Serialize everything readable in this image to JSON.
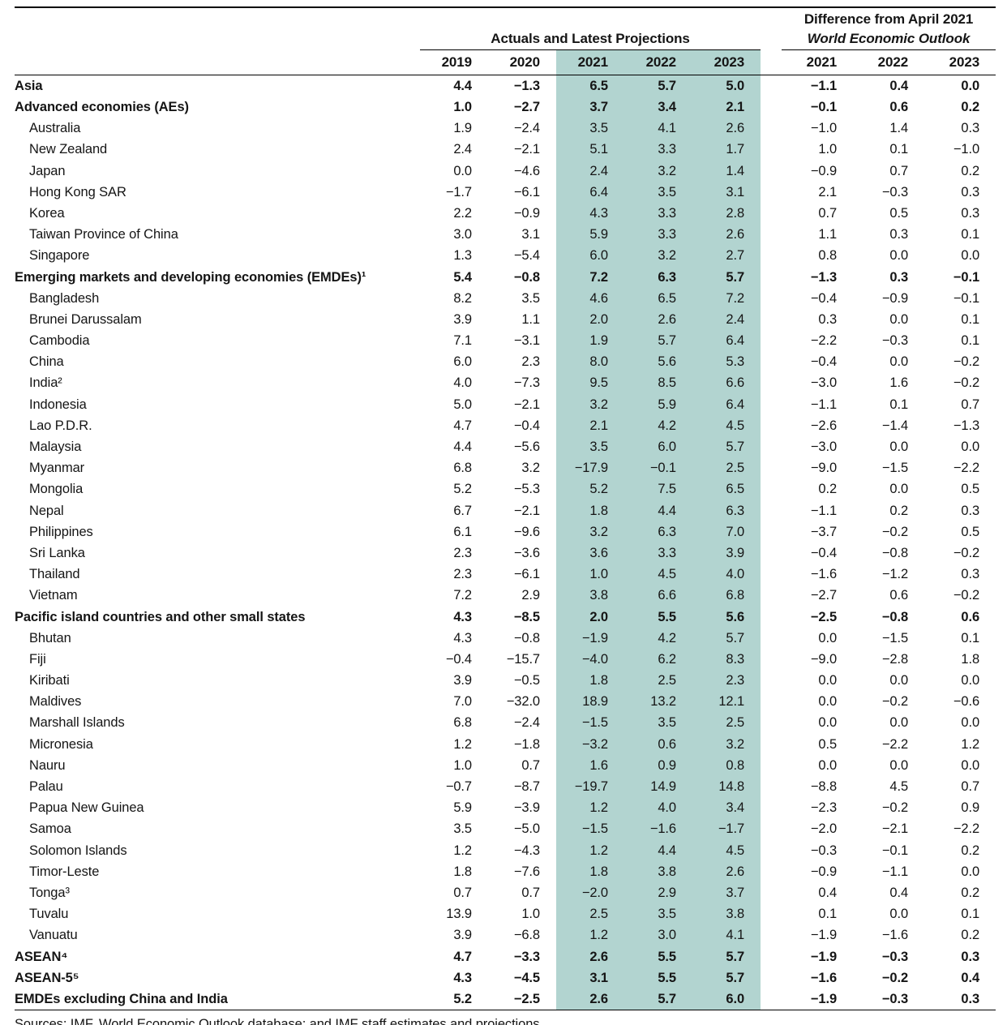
{
  "colors": {
    "highlight": "#b2d4d0"
  },
  "header": {
    "actuals_group": "Actuals and Latest Projections",
    "difference_group_line1": "Difference from April 2021",
    "difference_group_line2": "World Economic Outlook",
    "years_actual": [
      "2019",
      "2020",
      "2021",
      "2022",
      "2023"
    ],
    "years_diff": [
      "2021",
      "2022",
      "2023"
    ]
  },
  "rows": [
    {
      "label": "Asia",
      "bold": true,
      "indent": false,
      "values": [
        "4.4",
        "−1.3",
        "6.5",
        "5.7",
        "5.0",
        "−1.1",
        "0.4",
        "0.0"
      ]
    },
    {
      "label": "Advanced economies (AEs)",
      "bold": true,
      "indent": false,
      "values": [
        "1.0",
        "−2.7",
        "3.7",
        "3.4",
        "2.1",
        "−0.1",
        "0.6",
        "0.2"
      ]
    },
    {
      "label": "Australia",
      "bold": false,
      "indent": true,
      "values": [
        "1.9",
        "−2.4",
        "3.5",
        "4.1",
        "2.6",
        "−1.0",
        "1.4",
        "0.3"
      ]
    },
    {
      "label": "New Zealand",
      "bold": false,
      "indent": true,
      "values": [
        "2.4",
        "−2.1",
        "5.1",
        "3.3",
        "1.7",
        "1.0",
        "0.1",
        "−1.0"
      ]
    },
    {
      "label": "Japan",
      "bold": false,
      "indent": true,
      "values": [
        "0.0",
        "−4.6",
        "2.4",
        "3.2",
        "1.4",
        "−0.9",
        "0.7",
        "0.2"
      ]
    },
    {
      "label": "Hong Kong SAR",
      "bold": false,
      "indent": true,
      "values": [
        "−1.7",
        "−6.1",
        "6.4",
        "3.5",
        "3.1",
        "2.1",
        "−0.3",
        "0.3"
      ]
    },
    {
      "label": "Korea",
      "bold": false,
      "indent": true,
      "values": [
        "2.2",
        "−0.9",
        "4.3",
        "3.3",
        "2.8",
        "0.7",
        "0.5",
        "0.3"
      ]
    },
    {
      "label": "Taiwan Province of China",
      "bold": false,
      "indent": true,
      "values": [
        "3.0",
        "3.1",
        "5.9",
        "3.3",
        "2.6",
        "1.1",
        "0.3",
        "0.1"
      ]
    },
    {
      "label": "Singapore",
      "bold": false,
      "indent": true,
      "values": [
        "1.3",
        "−5.4",
        "6.0",
        "3.2",
        "2.7",
        "0.8",
        "0.0",
        "0.0"
      ]
    },
    {
      "label": "Emerging markets and developing economies (EMDEs)¹",
      "bold": true,
      "indent": false,
      "values": [
        "5.4",
        "−0.8",
        "7.2",
        "6.3",
        "5.7",
        "−1.3",
        "0.3",
        "−0.1"
      ]
    },
    {
      "label": "Bangladesh",
      "bold": false,
      "indent": true,
      "values": [
        "8.2",
        "3.5",
        "4.6",
        "6.5",
        "7.2",
        "−0.4",
        "−0.9",
        "−0.1"
      ]
    },
    {
      "label": "Brunei Darussalam",
      "bold": false,
      "indent": true,
      "values": [
        "3.9",
        "1.1",
        "2.0",
        "2.6",
        "2.4",
        "0.3",
        "0.0",
        "0.1"
      ]
    },
    {
      "label": "Cambodia",
      "bold": false,
      "indent": true,
      "values": [
        "7.1",
        "−3.1",
        "1.9",
        "5.7",
        "6.4",
        "−2.2",
        "−0.3",
        "0.1"
      ]
    },
    {
      "label": "China",
      "bold": false,
      "indent": true,
      "values": [
        "6.0",
        "2.3",
        "8.0",
        "5.6",
        "5.3",
        "−0.4",
        "0.0",
        "−0.2"
      ]
    },
    {
      "label": "India²",
      "bold": false,
      "indent": true,
      "values": [
        "4.0",
        "−7.3",
        "9.5",
        "8.5",
        "6.6",
        "−3.0",
        "1.6",
        "−0.2"
      ]
    },
    {
      "label": "Indonesia",
      "bold": false,
      "indent": true,
      "values": [
        "5.0",
        "−2.1",
        "3.2",
        "5.9",
        "6.4",
        "−1.1",
        "0.1",
        "0.7"
      ]
    },
    {
      "label": "Lao P.D.R.",
      "bold": false,
      "indent": true,
      "values": [
        "4.7",
        "−0.4",
        "2.1",
        "4.2",
        "4.5",
        "−2.6",
        "−1.4",
        "−1.3"
      ]
    },
    {
      "label": "Malaysia",
      "bold": false,
      "indent": true,
      "values": [
        "4.4",
        "−5.6",
        "3.5",
        "6.0",
        "5.7",
        "−3.0",
        "0.0",
        "0.0"
      ]
    },
    {
      "label": "Myanmar",
      "bold": false,
      "indent": true,
      "values": [
        "6.8",
        "3.2",
        "−17.9",
        "−0.1",
        "2.5",
        "−9.0",
        "−1.5",
        "−2.2"
      ]
    },
    {
      "label": "Mongolia",
      "bold": false,
      "indent": true,
      "values": [
        "5.2",
        "−5.3",
        "5.2",
        "7.5",
        "6.5",
        "0.2",
        "0.0",
        "0.5"
      ]
    },
    {
      "label": "Nepal",
      "bold": false,
      "indent": true,
      "values": [
        "6.7",
        "−2.1",
        "1.8",
        "4.4",
        "6.3",
        "−1.1",
        "0.2",
        "0.3"
      ]
    },
    {
      "label": "Philippines",
      "bold": false,
      "indent": true,
      "values": [
        "6.1",
        "−9.6",
        "3.2",
        "6.3",
        "7.0",
        "−3.7",
        "−0.2",
        "0.5"
      ]
    },
    {
      "label": "Sri Lanka",
      "bold": false,
      "indent": true,
      "values": [
        "2.3",
        "−3.6",
        "3.6",
        "3.3",
        "3.9",
        "−0.4",
        "−0.8",
        "−0.2"
      ]
    },
    {
      "label": "Thailand",
      "bold": false,
      "indent": true,
      "values": [
        "2.3",
        "−6.1",
        "1.0",
        "4.5",
        "4.0",
        "−1.6",
        "−1.2",
        "0.3"
      ]
    },
    {
      "label": "Vietnam",
      "bold": false,
      "indent": true,
      "values": [
        "7.2",
        "2.9",
        "3.8",
        "6.6",
        "6.8",
        "−2.7",
        "0.6",
        "−0.2"
      ]
    },
    {
      "label": "Pacific island countries and other small states",
      "bold": true,
      "indent": false,
      "values": [
        "4.3",
        "−8.5",
        "2.0",
        "5.5",
        "5.6",
        "−2.5",
        "−0.8",
        "0.6"
      ]
    },
    {
      "label": "Bhutan",
      "bold": false,
      "indent": true,
      "values": [
        "4.3",
        "−0.8",
        "−1.9",
        "4.2",
        "5.7",
        "0.0",
        "−1.5",
        "0.1"
      ]
    },
    {
      "label": "Fiji",
      "bold": false,
      "indent": true,
      "values": [
        "−0.4",
        "−15.7",
        "−4.0",
        "6.2",
        "8.3",
        "−9.0",
        "−2.8",
        "1.8"
      ]
    },
    {
      "label": "Kiribati",
      "bold": false,
      "indent": true,
      "values": [
        "3.9",
        "−0.5",
        "1.8",
        "2.5",
        "2.3",
        "0.0",
        "0.0",
        "0.0"
      ]
    },
    {
      "label": "Maldives",
      "bold": false,
      "indent": true,
      "values": [
        "7.0",
        "−32.0",
        "18.9",
        "13.2",
        "12.1",
        "0.0",
        "−0.2",
        "−0.6"
      ]
    },
    {
      "label": "Marshall Islands",
      "bold": false,
      "indent": true,
      "values": [
        "6.8",
        "−2.4",
        "−1.5",
        "3.5",
        "2.5",
        "0.0",
        "0.0",
        "0.0"
      ]
    },
    {
      "label": "Micronesia",
      "bold": false,
      "indent": true,
      "values": [
        "1.2",
        "−1.8",
        "−3.2",
        "0.6",
        "3.2",
        "0.5",
        "−2.2",
        "1.2"
      ]
    },
    {
      "label": "Nauru",
      "bold": false,
      "indent": true,
      "values": [
        "1.0",
        "0.7",
        "1.6",
        "0.9",
        "0.8",
        "0.0",
        "0.0",
        "0.0"
      ]
    },
    {
      "label": "Palau",
      "bold": false,
      "indent": true,
      "values": [
        "−0.7",
        "−8.7",
        "−19.7",
        "14.9",
        "14.8",
        "−8.8",
        "4.5",
        "0.7"
      ]
    },
    {
      "label": "Papua New Guinea",
      "bold": false,
      "indent": true,
      "values": [
        "5.9",
        "−3.9",
        "1.2",
        "4.0",
        "3.4",
        "−2.3",
        "−0.2",
        "0.9"
      ]
    },
    {
      "label": "Samoa",
      "bold": false,
      "indent": true,
      "values": [
        "3.5",
        "−5.0",
        "−1.5",
        "−1.6",
        "−1.7",
        "−2.0",
        "−2.1",
        "−2.2"
      ]
    },
    {
      "label": "Solomon Islands",
      "bold": false,
      "indent": true,
      "values": [
        "1.2",
        "−4.3",
        "1.2",
        "4.4",
        "4.5",
        "−0.3",
        "−0.1",
        "0.2"
      ]
    },
    {
      "label": "Timor-Leste",
      "bold": false,
      "indent": true,
      "values": [
        "1.8",
        "−7.6",
        "1.8",
        "3.8",
        "2.6",
        "−0.9",
        "−1.1",
        "0.0"
      ]
    },
    {
      "label": "Tonga³",
      "bold": false,
      "indent": true,
      "values": [
        "0.7",
        "0.7",
        "−2.0",
        "2.9",
        "3.7",
        "0.4",
        "0.4",
        "0.2"
      ]
    },
    {
      "label": "Tuvalu",
      "bold": false,
      "indent": true,
      "values": [
        "13.9",
        "1.0",
        "2.5",
        "3.5",
        "3.8",
        "0.1",
        "0.0",
        "0.1"
      ]
    },
    {
      "label": "Vanuatu",
      "bold": false,
      "indent": true,
      "values": [
        "3.9",
        "−6.8",
        "1.2",
        "3.0",
        "4.1",
        "−1.9",
        "−1.6",
        "0.2"
      ]
    },
    {
      "label": "ASEAN⁴",
      "bold": true,
      "indent": false,
      "values": [
        "4.7",
        "−3.3",
        "2.6",
        "5.5",
        "5.7",
        "−1.9",
        "−0.3",
        "0.3"
      ]
    },
    {
      "label": "ASEAN-5⁵",
      "bold": true,
      "indent": false,
      "values": [
        "4.3",
        "−4.5",
        "3.1",
        "5.5",
        "5.7",
        "−1.6",
        "−0.2",
        "0.4"
      ]
    },
    {
      "label": "EMDEs excluding China and India",
      "bold": true,
      "indent": false,
      "values": [
        "5.2",
        "−2.5",
        "2.6",
        "5.7",
        "6.0",
        "−1.9",
        "−0.3",
        "0.3"
      ]
    }
  ],
  "footer": {
    "sources": "Sources: IMF, World Economic Outlook database; and IMF staff estimates and projections."
  }
}
